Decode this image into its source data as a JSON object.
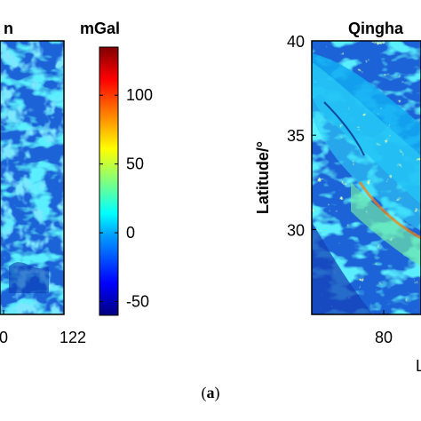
{
  "chart_data": [
    {
      "type": "heatmap",
      "title": "n",
      "x_ticks": [
        "0",
        "122"
      ],
      "xlim": [
        118,
        122
      ],
      "colorbar": {
        "unit": "mGal",
        "ticks": [
          "100",
          "50",
          "0",
          "-50"
        ],
        "range": [
          -60,
          135
        ],
        "colormap": "jet"
      }
    },
    {
      "type": "heatmap",
      "title": "Qingha",
      "ylabel": "Latitude/°",
      "y_ticks": [
        "40",
        "35",
        "30"
      ],
      "ylim": [
        25.5,
        40
      ],
      "x_ticks": [
        "80"
      ],
      "xlabel_fragment": "L"
    }
  ],
  "caption": {
    "open": "(",
    "letter": "a",
    "close": ")"
  },
  "colors": {
    "jet_low": "#00007f",
    "jet_mid": "#00c8ff",
    "jet_high": "#7f0000",
    "field_base": "#1b64d8"
  }
}
